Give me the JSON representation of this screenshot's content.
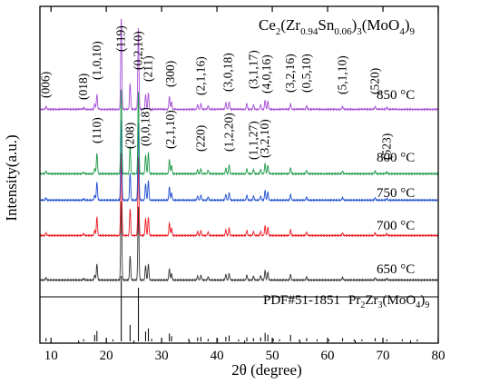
{
  "chart_data": {
    "type": "line",
    "xlabel": "2θ (degree)",
    "ylabel": "Intensity(a.u.)",
    "xlim": [
      8,
      80
    ],
    "x_ticks": [
      10,
      20,
      30,
      40,
      50,
      60,
      70,
      80
    ],
    "y_ticks": "none",
    "grid": false,
    "legend": "none",
    "formula": {
      "prefix": "Ce",
      "sub1": "2",
      "mid1": "(Zr",
      "sub2": "0.94",
      "mid2": "Sn",
      "sub3": "0.06",
      "mid3": ")",
      "sub4": "3",
      "mid4": "(MoO",
      "sub5": "4",
      "mid5": ")",
      "sub6": "9"
    },
    "reference": {
      "pdf_text": "PDF#51-1851",
      "compound_prefix": "Pr",
      "compound_sub1": "2",
      "compound_mid1": "Zr",
      "compound_sub2": "3",
      "compound_mid2": "(MoO",
      "compound_sub3": "4",
      "compound_mid3": ")",
      "compound_sub4": "9",
      "sticks": [
        {
          "x": 9.1,
          "h": 0.05
        },
        {
          "x": 15.9,
          "h": 0.03
        },
        {
          "x": 17.9,
          "h": 0.1
        },
        {
          "x": 18.3,
          "h": 0.16
        },
        {
          "x": 21.2,
          "h": 0.03
        },
        {
          "x": 22.7,
          "h": 1.0
        },
        {
          "x": 24.3,
          "h": 0.25
        },
        {
          "x": 25.8,
          "h": 0.82
        },
        {
          "x": 27.1,
          "h": 0.15
        },
        {
          "x": 27.6,
          "h": 0.2
        },
        {
          "x": 28.2,
          "h": 0.04
        },
        {
          "x": 31.4,
          "h": 0.12
        },
        {
          "x": 31.8,
          "h": 0.08
        },
        {
          "x": 34.9,
          "h": 0.04
        },
        {
          "x": 36.5,
          "h": 0.06
        },
        {
          "x": 37.1,
          "h": 0.07
        },
        {
          "x": 38.4,
          "h": 0.04
        },
        {
          "x": 40.1,
          "h": 0.04
        },
        {
          "x": 41.6,
          "h": 0.07
        },
        {
          "x": 42.2,
          "h": 0.09
        },
        {
          "x": 43.9,
          "h": 0.03
        },
        {
          "x": 45.4,
          "h": 0.06
        },
        {
          "x": 46.6,
          "h": 0.05
        },
        {
          "x": 47.9,
          "h": 0.06
        },
        {
          "x": 48.7,
          "h": 0.13
        },
        {
          "x": 49.2,
          "h": 0.1
        },
        {
          "x": 50.2,
          "h": 0.04
        },
        {
          "x": 51.3,
          "h": 0.03
        },
        {
          "x": 53.3,
          "h": 0.1
        },
        {
          "x": 54.9,
          "h": 0.03
        },
        {
          "x": 56.2,
          "h": 0.05
        },
        {
          "x": 58.1,
          "h": 0.03
        },
        {
          "x": 60.2,
          "h": 0.03
        },
        {
          "x": 62.7,
          "h": 0.05
        },
        {
          "x": 64.8,
          "h": 0.03
        },
        {
          "x": 66.2,
          "h": 0.03
        },
        {
          "x": 68.6,
          "h": 0.05
        },
        {
          "x": 70.7,
          "h": 0.03
        },
        {
          "x": 73.5,
          "h": 0.03
        },
        {
          "x": 76.2,
          "h": 0.03
        }
      ]
    },
    "series": [
      {
        "name": "650 °C",
        "color": "#333333",
        "peaks": [
          {
            "x": 9.1,
            "h": 0.03
          },
          {
            "x": 15.9,
            "h": 0.02
          },
          {
            "x": 17.9,
            "h": 0.06
          },
          {
            "x": 18.3,
            "h": 0.2
          },
          {
            "x": 22.7,
            "h": 1.0
          },
          {
            "x": 24.3,
            "h": 0.3
          },
          {
            "x": 25.8,
            "h": 0.92
          },
          {
            "x": 27.1,
            "h": 0.18
          },
          {
            "x": 27.6,
            "h": 0.2
          },
          {
            "x": 31.4,
            "h": 0.14
          },
          {
            "x": 31.8,
            "h": 0.08
          },
          {
            "x": 36.5,
            "h": 0.05
          },
          {
            "x": 37.1,
            "h": 0.06
          },
          {
            "x": 38.4,
            "h": 0.04
          },
          {
            "x": 41.6,
            "h": 0.07
          },
          {
            "x": 42.2,
            "h": 0.08
          },
          {
            "x": 45.4,
            "h": 0.06
          },
          {
            "x": 46.6,
            "h": 0.05
          },
          {
            "x": 47.9,
            "h": 0.05
          },
          {
            "x": 48.7,
            "h": 0.12
          },
          {
            "x": 49.2,
            "h": 0.1
          },
          {
            "x": 53.3,
            "h": 0.07
          },
          {
            "x": 56.2,
            "h": 0.04
          },
          {
            "x": 62.7,
            "h": 0.03
          },
          {
            "x": 68.6,
            "h": 0.03
          },
          {
            "x": 70.7,
            "h": 0.02
          }
        ]
      },
      {
        "name": "700 °C",
        "color": "#ee1c25",
        "peaks": [
          {
            "x": 9.1,
            "h": 0.03
          },
          {
            "x": 15.9,
            "h": 0.02
          },
          {
            "x": 17.9,
            "h": 0.06
          },
          {
            "x": 18.3,
            "h": 0.22
          },
          {
            "x": 22.7,
            "h": 1.0
          },
          {
            "x": 24.3,
            "h": 0.32
          },
          {
            "x": 25.8,
            "h": 0.94
          },
          {
            "x": 27.1,
            "h": 0.2
          },
          {
            "x": 27.6,
            "h": 0.22
          },
          {
            "x": 31.4,
            "h": 0.15
          },
          {
            "x": 31.8,
            "h": 0.09
          },
          {
            "x": 36.5,
            "h": 0.05
          },
          {
            "x": 37.1,
            "h": 0.06
          },
          {
            "x": 38.4,
            "h": 0.04
          },
          {
            "x": 41.6,
            "h": 0.07
          },
          {
            "x": 42.2,
            "h": 0.09
          },
          {
            "x": 45.4,
            "h": 0.06
          },
          {
            "x": 46.6,
            "h": 0.05
          },
          {
            "x": 47.9,
            "h": 0.05
          },
          {
            "x": 48.7,
            "h": 0.12
          },
          {
            "x": 49.2,
            "h": 0.1
          },
          {
            "x": 53.3,
            "h": 0.07
          },
          {
            "x": 56.2,
            "h": 0.04
          },
          {
            "x": 62.7,
            "h": 0.03
          },
          {
            "x": 68.6,
            "h": 0.03
          },
          {
            "x": 70.7,
            "h": 0.02
          }
        ]
      },
      {
        "name": "750 °C",
        "color": "#1f4fd1",
        "peaks": [
          {
            "x": 9.1,
            "h": 0.03
          },
          {
            "x": 15.9,
            "h": 0.02
          },
          {
            "x": 17.9,
            "h": 0.06
          },
          {
            "x": 18.3,
            "h": 0.22
          },
          {
            "x": 22.7,
            "h": 1.0
          },
          {
            "x": 24.3,
            "h": 0.33
          },
          {
            "x": 25.8,
            "h": 0.95
          },
          {
            "x": 27.1,
            "h": 0.2
          },
          {
            "x": 27.6,
            "h": 0.24
          },
          {
            "x": 31.4,
            "h": 0.16
          },
          {
            "x": 31.8,
            "h": 0.09
          },
          {
            "x": 36.5,
            "h": 0.05
          },
          {
            "x": 37.1,
            "h": 0.06
          },
          {
            "x": 38.4,
            "h": 0.04
          },
          {
            "x": 41.6,
            "h": 0.07
          },
          {
            "x": 42.2,
            "h": 0.09
          },
          {
            "x": 45.4,
            "h": 0.06
          },
          {
            "x": 46.6,
            "h": 0.05
          },
          {
            "x": 47.9,
            "h": 0.05
          },
          {
            "x": 48.7,
            "h": 0.12
          },
          {
            "x": 49.2,
            "h": 0.1
          },
          {
            "x": 53.3,
            "h": 0.07
          },
          {
            "x": 56.2,
            "h": 0.04
          },
          {
            "x": 62.7,
            "h": 0.03
          },
          {
            "x": 68.6,
            "h": 0.03
          },
          {
            "x": 70.7,
            "h": 0.02
          }
        ]
      },
      {
        "name": "800 °C",
        "color": "#1f9a4a",
        "peaks": [
          {
            "x": 9.1,
            "h": 0.03
          },
          {
            "x": 15.9,
            "h": 0.02
          },
          {
            "x": 17.9,
            "h": 0.06
          },
          {
            "x": 18.3,
            "h": 0.24
          },
          {
            "x": 22.7,
            "h": 1.0
          },
          {
            "x": 24.3,
            "h": 0.32
          },
          {
            "x": 25.8,
            "h": 0.96
          },
          {
            "x": 27.1,
            "h": 0.22
          },
          {
            "x": 27.6,
            "h": 0.25
          },
          {
            "x": 31.4,
            "h": 0.17
          },
          {
            "x": 31.8,
            "h": 0.1
          },
          {
            "x": 36.5,
            "h": 0.05
          },
          {
            "x": 37.1,
            "h": 0.06
          },
          {
            "x": 38.4,
            "h": 0.04
          },
          {
            "x": 41.6,
            "h": 0.07
          },
          {
            "x": 42.2,
            "h": 0.1
          },
          {
            "x": 45.4,
            "h": 0.06
          },
          {
            "x": 46.6,
            "h": 0.05
          },
          {
            "x": 47.9,
            "h": 0.05
          },
          {
            "x": 48.7,
            "h": 0.12
          },
          {
            "x": 49.2,
            "h": 0.1
          },
          {
            "x": 53.3,
            "h": 0.07
          },
          {
            "x": 56.2,
            "h": 0.04
          },
          {
            "x": 62.7,
            "h": 0.03
          },
          {
            "x": 68.6,
            "h": 0.03
          },
          {
            "x": 70.7,
            "h": 0.02
          }
        ]
      },
      {
        "name": "850 °C",
        "color": "#a64fd6",
        "peaks": [
          {
            "x": 9.1,
            "h": 0.03
          },
          {
            "x": 15.9,
            "h": 0.02
          },
          {
            "x": 17.9,
            "h": 0.06
          },
          {
            "x": 18.3,
            "h": 0.16
          },
          {
            "x": 22.7,
            "h": 1.0
          },
          {
            "x": 24.3,
            "h": 0.28
          },
          {
            "x": 25.8,
            "h": 0.88
          },
          {
            "x": 27.1,
            "h": 0.16
          },
          {
            "x": 27.6,
            "h": 0.18
          },
          {
            "x": 31.4,
            "h": 0.14
          },
          {
            "x": 31.8,
            "h": 0.08
          },
          {
            "x": 36.5,
            "h": 0.05
          },
          {
            "x": 37.1,
            "h": 0.06
          },
          {
            "x": 38.4,
            "h": 0.04
          },
          {
            "x": 41.6,
            "h": 0.07
          },
          {
            "x": 42.2,
            "h": 0.08
          },
          {
            "x": 45.4,
            "h": 0.06
          },
          {
            "x": 46.6,
            "h": 0.05
          },
          {
            "x": 47.9,
            "h": 0.05
          },
          {
            "x": 48.7,
            "h": 0.1
          },
          {
            "x": 49.2,
            "h": 0.09
          },
          {
            "x": 53.3,
            "h": 0.06
          },
          {
            "x": 56.2,
            "h": 0.04
          },
          {
            "x": 62.7,
            "h": 0.03
          },
          {
            "x": 68.6,
            "h": 0.03
          },
          {
            "x": 70.7,
            "h": 0.02
          }
        ]
      }
    ],
    "annotations": [
      {
        "text": "(006)",
        "x": 9.1
      },
      {
        "text": "(018)",
        "x": 15.9
      },
      {
        "text": "(1,0,10)",
        "x": 18.3
      },
      {
        "text": "(119)",
        "x": 22.7
      },
      {
        "text": "(0,2,10)",
        "x": 25.8
      },
      {
        "text": "(211)",
        "x": 27.6
      },
      {
        "text": "(300)",
        "x": 31.6
      },
      {
        "text": "(2,1,16)",
        "x": 37.1
      },
      {
        "text": "(3,0,18)",
        "x": 42.0
      },
      {
        "text": "(3,1,17)",
        "x": 46.6
      },
      {
        "text": "(4,0,16)",
        "x": 49.0
      },
      {
        "text": "(3,2,16)",
        "x": 53.3
      },
      {
        "text": "(0,5,10)",
        "x": 56.2
      },
      {
        "text": "(5,1,10)",
        "x": 62.7
      },
      {
        "text": "(520)",
        "x": 68.6
      },
      {
        "text": "(110)",
        "x": 18.3
      },
      {
        "text": "(208)",
        "x": 24.3
      },
      {
        "text": "(0,0,18)",
        "x": 27.1
      },
      {
        "text": "(2,1,10)",
        "x": 31.6
      },
      {
        "text": "(220)",
        "x": 37.1
      },
      {
        "text": "(1,2,20)",
        "x": 42.2
      },
      {
        "text": "(1,1,27)",
        "x": 46.6
      },
      {
        "text": "(3,2,10)",
        "x": 48.7
      },
      {
        "text": "(523)",
        "x": 70.7
      }
    ]
  }
}
